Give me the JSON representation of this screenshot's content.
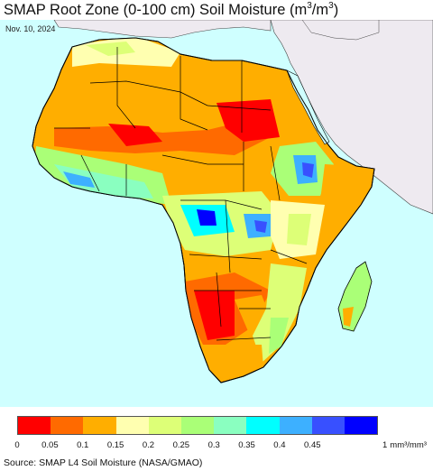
{
  "header": {
    "title_prefix": "SMAP Root Zone (0-100 cm) Soil Moisture (m",
    "title_exp1": "3",
    "title_mid": "/m",
    "title_exp2": "3",
    "title_suffix": ")",
    "date": "Nov. 10, 2024"
  },
  "legend": {
    "colors": [
      "#ff0000",
      "#ff6a00",
      "#ffae00",
      "#ffffb0",
      "#ddff77",
      "#aaff77",
      "#8affc0",
      "#00ffff",
      "#3db0ff",
      "#3850ff",
      "#0000ff"
    ],
    "ticks": [
      "0",
      "0.05",
      "0.1",
      "0.15",
      "0.2",
      "0.25",
      "0.3",
      "0.35",
      "0.4",
      "0.45"
    ],
    "unit_value": "1",
    "unit_label": "mm³/mm³"
  },
  "source": "Source: SMAP L4 Soil Moisture (NASA/GMAO)",
  "map": {
    "ocean_color": "#cfffff",
    "masked_land_color": "#eeeaf0",
    "border_color": "#000000"
  }
}
